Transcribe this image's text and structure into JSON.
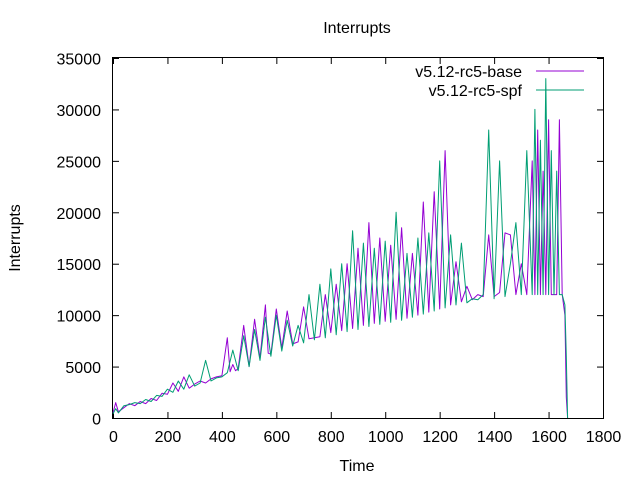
{
  "chart_data": {
    "type": "line",
    "title": "Interrupts",
    "xlabel": "Time",
    "ylabel": "Interrupts",
    "xlim": [
      0,
      1800
    ],
    "ylim": [
      0,
      35000
    ],
    "xticks": [
      0,
      200,
      400,
      600,
      800,
      1000,
      1200,
      1400,
      1600,
      1800
    ],
    "yticks": [
      0,
      5000,
      10000,
      15000,
      20000,
      25000,
      30000,
      35000
    ],
    "xtick_labels": [
      "0",
      "200",
      "400",
      "600",
      "800",
      "1000",
      "1200",
      "1400",
      "1600",
      "1800"
    ],
    "ytick_labels": [
      "0",
      "5000",
      "10000",
      "15000",
      "20000",
      "25000",
      "30000",
      "35000"
    ],
    "grid": false,
    "legend_position": "top-right",
    "series": [
      {
        "name": "v5.12-rc5-base",
        "color": "#9400d3",
        "x": [
          0,
          10,
          20,
          40,
          60,
          80,
          100,
          120,
          140,
          160,
          180,
          200,
          220,
          240,
          260,
          280,
          300,
          320,
          340,
          360,
          380,
          400,
          420,
          430,
          440,
          450,
          460,
          480,
          500,
          520,
          540,
          560,
          570,
          580,
          600,
          620,
          640,
          660,
          680,
          700,
          720,
          740,
          760,
          780,
          800,
          820,
          840,
          860,
          880,
          900,
          920,
          940,
          960,
          980,
          1000,
          1020,
          1040,
          1060,
          1080,
          1100,
          1120,
          1140,
          1160,
          1180,
          1200,
          1220,
          1240,
          1260,
          1280,
          1300,
          1320,
          1340,
          1360,
          1380,
          1400,
          1420,
          1440,
          1460,
          1480,
          1500,
          1520,
          1540,
          1550,
          1560,
          1570,
          1580,
          1590,
          1600,
          1610,
          1620,
          1630,
          1640,
          1650,
          1660,
          1665,
          1670
        ],
        "values": [
          500,
          1500,
          600,
          1000,
          1400,
          1200,
          1600,
          1400,
          1900,
          1700,
          2400,
          2300,
          3400,
          2600,
          4000,
          2900,
          3300,
          3600,
          3400,
          3800,
          4000,
          4100,
          7800,
          4500,
          5200,
          4600,
          4800,
          9000,
          5000,
          9600,
          5800,
          11000,
          6300,
          6200,
          10600,
          6800,
          10400,
          7200,
          7400,
          10800,
          7700,
          7800,
          7900,
          12000,
          8300,
          13000,
          8500,
          15000,
          8700,
          16500,
          9000,
          19000,
          9200,
          17500,
          9400,
          16800,
          9600,
          18500,
          9700,
          16000,
          10000,
          21000,
          10300,
          22000,
          10600,
          26000,
          11000,
          15200,
          11300,
          12800,
          11500,
          12000,
          11800,
          17800,
          11800,
          12200,
          18000,
          17800,
          12000,
          15000,
          12000,
          25000,
          12000,
          28000,
          12000,
          24000,
          12000,
          29000,
          12000,
          12000,
          12000,
          29000,
          12000,
          10000,
          2000,
          0
        ]
      },
      {
        "name": "v5.12-rc5-spf",
        "color": "#009e73",
        "x": [
          0,
          10,
          20,
          40,
          60,
          80,
          100,
          120,
          140,
          160,
          180,
          200,
          220,
          240,
          260,
          280,
          300,
          320,
          340,
          360,
          380,
          400,
          420,
          440,
          460,
          480,
          500,
          520,
          540,
          560,
          580,
          600,
          620,
          640,
          660,
          680,
          700,
          720,
          740,
          760,
          780,
          800,
          820,
          840,
          860,
          880,
          900,
          920,
          940,
          960,
          980,
          1000,
          1020,
          1040,
          1060,
          1080,
          1100,
          1120,
          1140,
          1160,
          1180,
          1200,
          1220,
          1240,
          1260,
          1280,
          1300,
          1320,
          1340,
          1360,
          1380,
          1400,
          1420,
          1440,
          1460,
          1480,
          1500,
          1520,
          1540,
          1550,
          1560,
          1570,
          1580,
          1590,
          1600,
          1610,
          1620,
          1630,
          1640,
          1650,
          1660,
          1665,
          1670
        ],
        "values": [
          400,
          900,
          500,
          1200,
          1300,
          1500,
          1400,
          1800,
          1600,
          2200,
          2100,
          2800,
          2500,
          3600,
          2800,
          4200,
          3100,
          3400,
          5600,
          3600,
          3900,
          4000,
          4400,
          6600,
          4600,
          8000,
          5000,
          8600,
          5600,
          9800,
          6000,
          10000,
          6500,
          9500,
          7000,
          9000,
          7300,
          12000,
          7600,
          13000,
          7800,
          14500,
          8100,
          15000,
          8400,
          18200,
          8600,
          17000,
          8900,
          16500,
          9100,
          17200,
          9300,
          20000,
          9500,
          16000,
          9800,
          17500,
          10100,
          18000,
          10400,
          25000,
          10700,
          17800,
          11000,
          17000,
          11200,
          11600,
          11500,
          12000,
          28000,
          11600,
          25000,
          11800,
          15000,
          19000,
          12000,
          26000,
          12000,
          30000,
          12000,
          27000,
          12000,
          33000,
          12000,
          26000,
          12000,
          24000,
          12000,
          12000,
          11000,
          6000,
          0
        ]
      }
    ]
  }
}
